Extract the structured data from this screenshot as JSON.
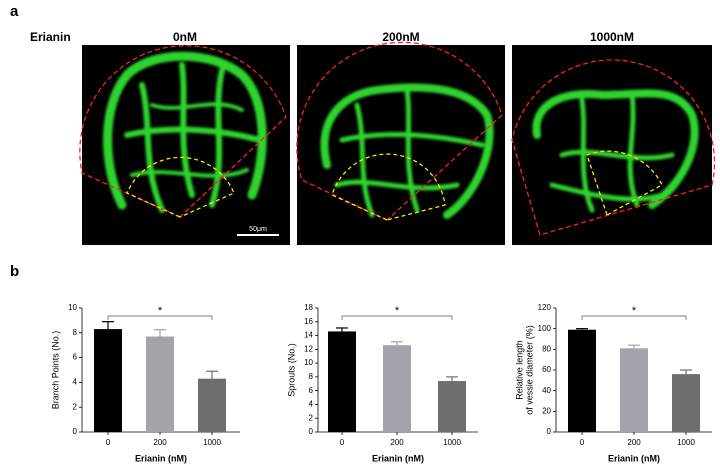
{
  "panel_a": {
    "label": "a",
    "row_label": "Erianin",
    "columns": [
      "0nM",
      "200nM",
      "1000nM"
    ],
    "scale_bar": "50μm"
  },
  "panel_b": {
    "label": "b"
  },
  "chart_data": [
    {
      "type": "bar",
      "ylabel": [
        "Branch Points (No.)"
      ],
      "xlabel": "Erianin (nM)",
      "categories": [
        "0",
        "200",
        "1000"
      ],
      "values": [
        8.3,
        7.7,
        4.3
      ],
      "errors": [
        0.6,
        0.55,
        0.6
      ],
      "colors": [
        "#000000",
        "#a3a3ab",
        "#6e6e6e"
      ],
      "ylim": [
        0,
        10
      ],
      "yticks": [
        0,
        2,
        4,
        6,
        8,
        10
      ],
      "annotation": "*"
    },
    {
      "type": "bar",
      "ylabel": [
        "Sprouts (No.)"
      ],
      "xlabel": "Erianin (nM)",
      "categories": [
        "0",
        "200",
        "1000"
      ],
      "values": [
        14.6,
        12.6,
        7.4
      ],
      "errors": [
        0.5,
        0.5,
        0.6
      ],
      "colors": [
        "#000000",
        "#a3a3ab",
        "#6e6e6e"
      ],
      "ylim": [
        0,
        18
      ],
      "yticks": [
        0,
        2,
        4,
        6,
        8,
        10,
        12,
        14,
        16,
        18
      ],
      "annotation": "*"
    },
    {
      "type": "bar",
      "ylabel": [
        "Relative length",
        "of vessie diameter (%)"
      ],
      "xlabel": "Erianin (nM)",
      "categories": [
        "0",
        "200",
        "1000"
      ],
      "values": [
        99,
        81,
        56
      ],
      "errors": [
        1,
        3,
        4
      ],
      "colors": [
        "#000000",
        "#a3a3ab",
        "#6e6e6e"
      ],
      "ylim": [
        0,
        120
      ],
      "yticks": [
        0,
        20,
        40,
        60,
        80,
        100,
        120
      ],
      "annotation": "*"
    }
  ]
}
